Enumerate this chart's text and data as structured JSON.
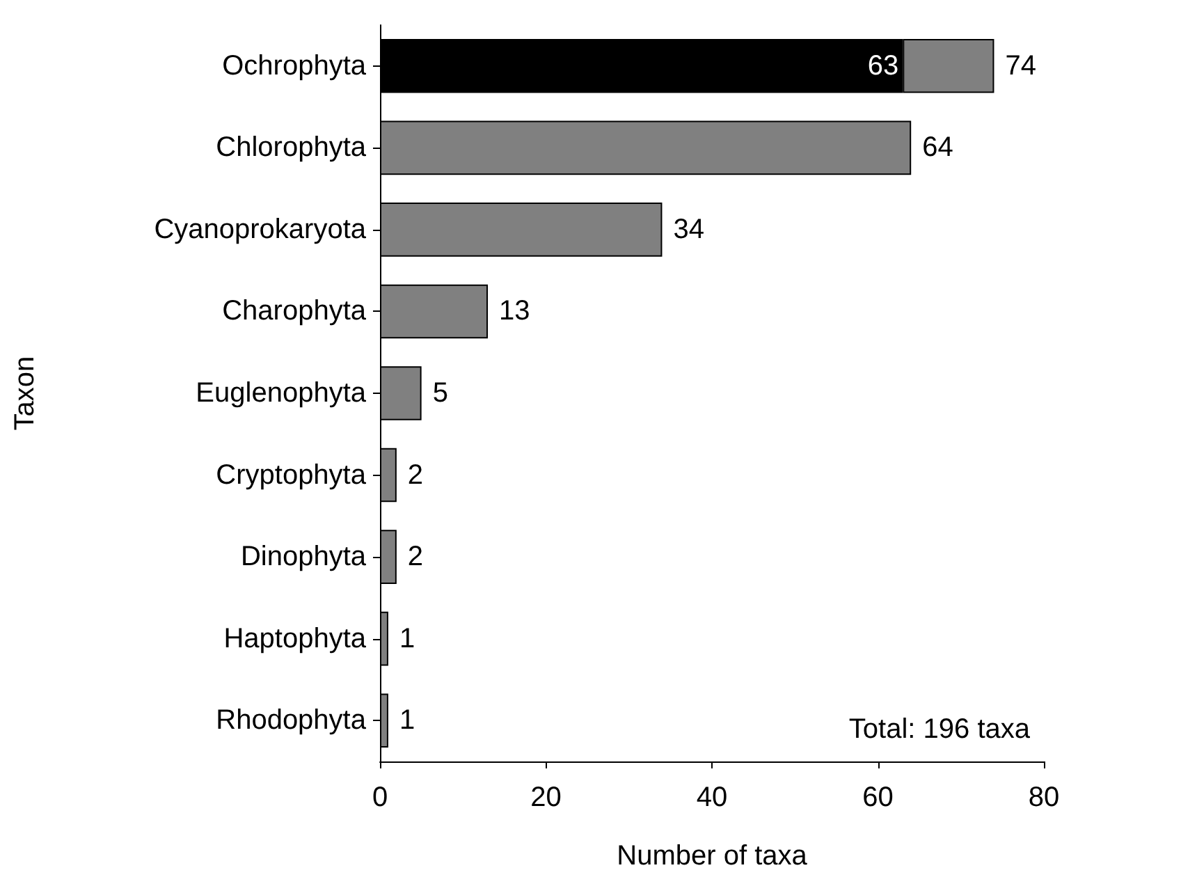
{
  "chart_data": {
    "type": "bar",
    "orientation": "horizontal",
    "stacked": true,
    "categories": [
      "Ochrophyta",
      "Chlorophyta",
      "Cyanoprokaryota",
      "Charophyta",
      "Euglenophyta",
      "Cryptophyta",
      "Dinophyta",
      "Haptophyta",
      "Rhodophyta"
    ],
    "series": [
      {
        "color": "#000000",
        "values": [
          63,
          null,
          null,
          null,
          null,
          null,
          null,
          null,
          null
        ],
        "value_labels": [
          "63",
          null,
          null,
          null,
          null,
          null,
          null,
          null,
          null
        ]
      },
      {
        "color": "#808080",
        "values": [
          11,
          64,
          34,
          13,
          5,
          2,
          2,
          1,
          1
        ]
      }
    ],
    "totals": [
      "74",
      "64",
      "34",
      "13",
      "5",
      "2",
      "2",
      "1",
      "1"
    ],
    "xlim": [
      0,
      80
    ],
    "xticks": [
      0,
      20,
      40,
      60,
      80
    ],
    "xlabel": "Number of taxa",
    "ylabel": "Taxon",
    "annotations": [
      "Total: 196 taxa"
    ]
  }
}
